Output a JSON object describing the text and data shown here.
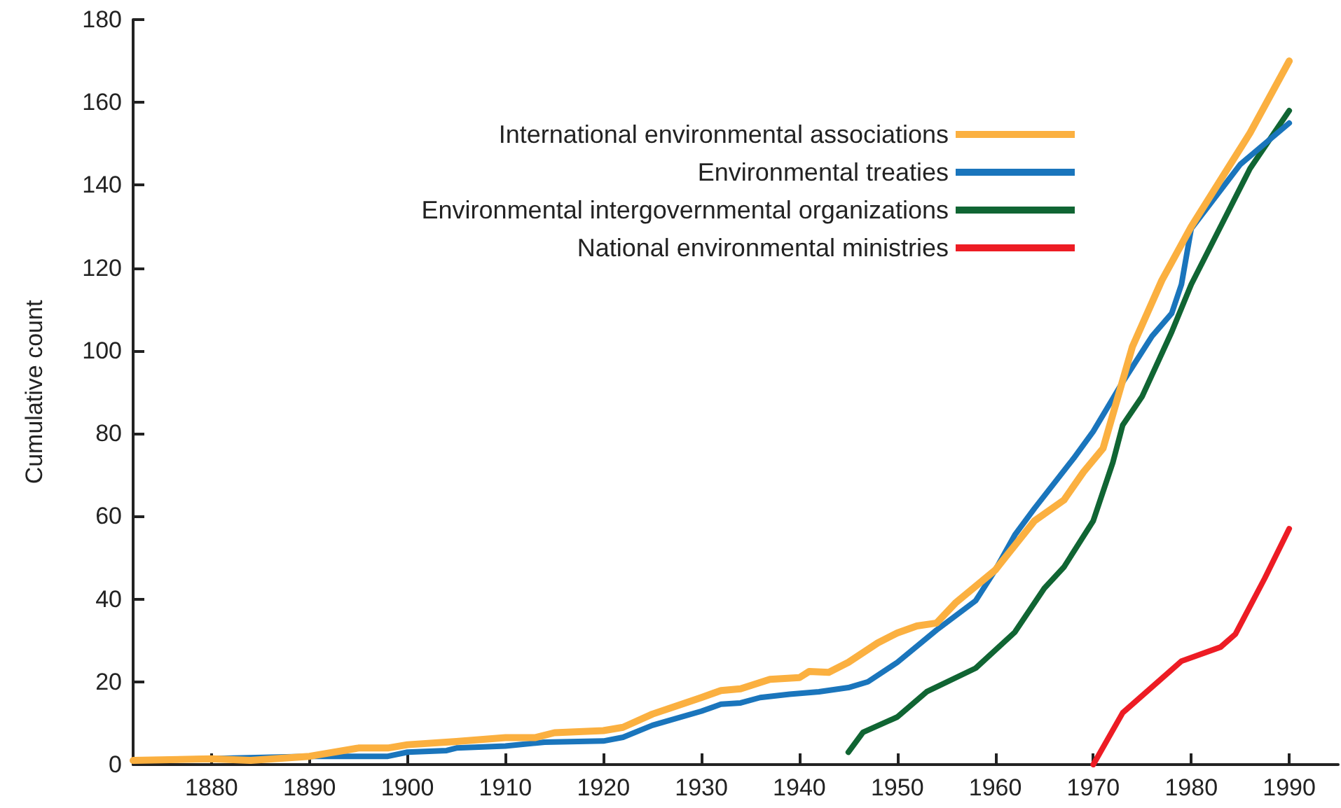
{
  "chart_data": {
    "type": "line",
    "ylabel": "Cumulative count",
    "xlim": [
      1872,
      1995
    ],
    "xticks": [
      1880,
      1890,
      1900,
      1910,
      1920,
      1930,
      1940,
      1950,
      1960,
      1970,
      1980,
      1990
    ],
    "ylim": [
      0,
      180
    ],
    "yticks": [
      0,
      20,
      40,
      60,
      80,
      100,
      120,
      140,
      160,
      180
    ],
    "grid": false,
    "legend": "top right",
    "marker": "none",
    "line_style": "solid",
    "series": [
      {
        "name": "International environmental associations",
        "color": "#fbb040",
        "x": [
          1872,
          1880,
          1884,
          1890,
          1895,
          1898,
          1900,
          1905,
          1910,
          1913,
          1915,
          1920,
          1922,
          1925,
          1930,
          1932,
          1934,
          1937,
          1940,
          1941,
          1943,
          1945,
          1948,
          1950,
          1952,
          1954,
          1956,
          1960,
          1961,
          1964,
          1967,
          1969,
          1971,
          1974,
          1977,
          1980,
          1986,
          1990
        ],
        "values": [
          1,
          1.4,
          1,
          2,
          4,
          4,
          4.8,
          5.6,
          6.5,
          6.5,
          7.7,
          8.2,
          9,
          12.2,
          16.2,
          17.9,
          18.3,
          20.6,
          21,
          22.5,
          22.3,
          24.7,
          29.4,
          31.8,
          33.5,
          34.2,
          39.2,
          47,
          50,
          58.9,
          63.9,
          70.7,
          76.4,
          101,
          117,
          130,
          152.6,
          170
        ]
      },
      {
        "name": "Environmental treaties",
        "color": "#1a75bc",
        "x": [
          1872,
          1890,
          1898,
          1900,
          1904,
          1905,
          1910,
          1914,
          1920,
          1922,
          1925,
          1930,
          1932,
          1934,
          1936,
          1939,
          1942,
          1945,
          1947,
          1950,
          1954,
          1958,
          1960,
          1962,
          1964,
          1968,
          1970,
          1973,
          1976,
          1978,
          1979,
          1980,
          1985,
          1990
        ],
        "values": [
          1,
          2,
          2,
          3,
          3.4,
          4,
          4.5,
          5.4,
          5.7,
          6.6,
          9.5,
          12.9,
          14.6,
          14.9,
          16.2,
          17,
          17.6,
          18.6,
          20,
          24.7,
          32.5,
          39.6,
          47,
          55.5,
          61.9,
          74,
          80.5,
          92.4,
          103.5,
          109,
          116,
          129.5,
          145,
          155
        ]
      },
      {
        "name": "Environmental intergovernmental organizations",
        "color": "#106533",
        "x": [
          1945,
          1946.5,
          1950,
          1953,
          1958,
          1962,
          1965,
          1967,
          1970,
          1972,
          1973,
          1975,
          1978,
          1980,
          1986,
          1990
        ],
        "values": [
          3,
          7.8,
          11.5,
          17.6,
          23.3,
          32,
          42.6,
          47.7,
          58.9,
          73,
          82,
          89,
          104.5,
          116,
          144,
          158
        ]
      },
      {
        "name": "National environmental ministries",
        "color": "#ed1c24",
        "x": [
          1970,
          1973,
          1979,
          1983,
          1984.5,
          1987.5,
          1990
        ],
        "values": [
          0,
          12.5,
          25,
          28.4,
          31.5,
          45,
          57
        ]
      }
    ]
  }
}
